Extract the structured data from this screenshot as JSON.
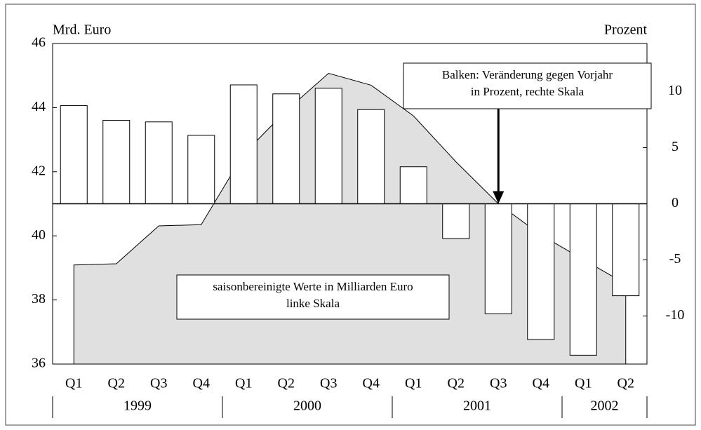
{
  "chart_data": {
    "type": "combo",
    "y_label": "Mrd. Euro",
    "y2_label": "Prozent",
    "categories": [
      "Q1",
      "Q2",
      "Q3",
      "Q4",
      "Q1",
      "Q2",
      "Q3",
      "Q4",
      "Q1",
      "Q2",
      "Q3",
      "Q4",
      "Q1",
      "Q2"
    ],
    "years": [
      "1999",
      "2000",
      "2001",
      "2002"
    ],
    "series": [
      {
        "name": "saisonbereinigte Werte in Milliarden Euro",
        "type": "area",
        "color": "#e0e0e0",
        "values": [
          39.09,
          39.13,
          40.31,
          40.35,
          42.55,
          43.9,
          45.07,
          44.7,
          43.74,
          42.31,
          41.0,
          40.03,
          39.26,
          38.5
        ]
      },
      {
        "name": "Veränderung gegen Vorjahr in Prozent",
        "type": "bar",
        "axis": "y2",
        "color": "#ffffff",
        "values": [
          8.75,
          7.44,
          7.3,
          6.1,
          10.6,
          9.8,
          10.3,
          8.4,
          3.3,
          -3.1,
          -9.8,
          -12.1,
          -13.5,
          -8.2
        ]
      }
    ],
    "ylim": [
      36,
      46
    ],
    "yticks": [
      36,
      38,
      40,
      42,
      44,
      46
    ],
    "y2lim": [
      -14.29,
      14.29
    ],
    "y2ticks": [
      -10,
      -5,
      0,
      5,
      10
    ],
    "annotations": [
      {
        "lines": [
          "Balken: Veränderung gegen Vorjahr",
          "in Prozent, rechte Skala"
        ]
      },
      {
        "lines": [
          "saisonbereinigte Werte in Milliarden Euro",
          "linke Skala"
        ]
      }
    ]
  }
}
